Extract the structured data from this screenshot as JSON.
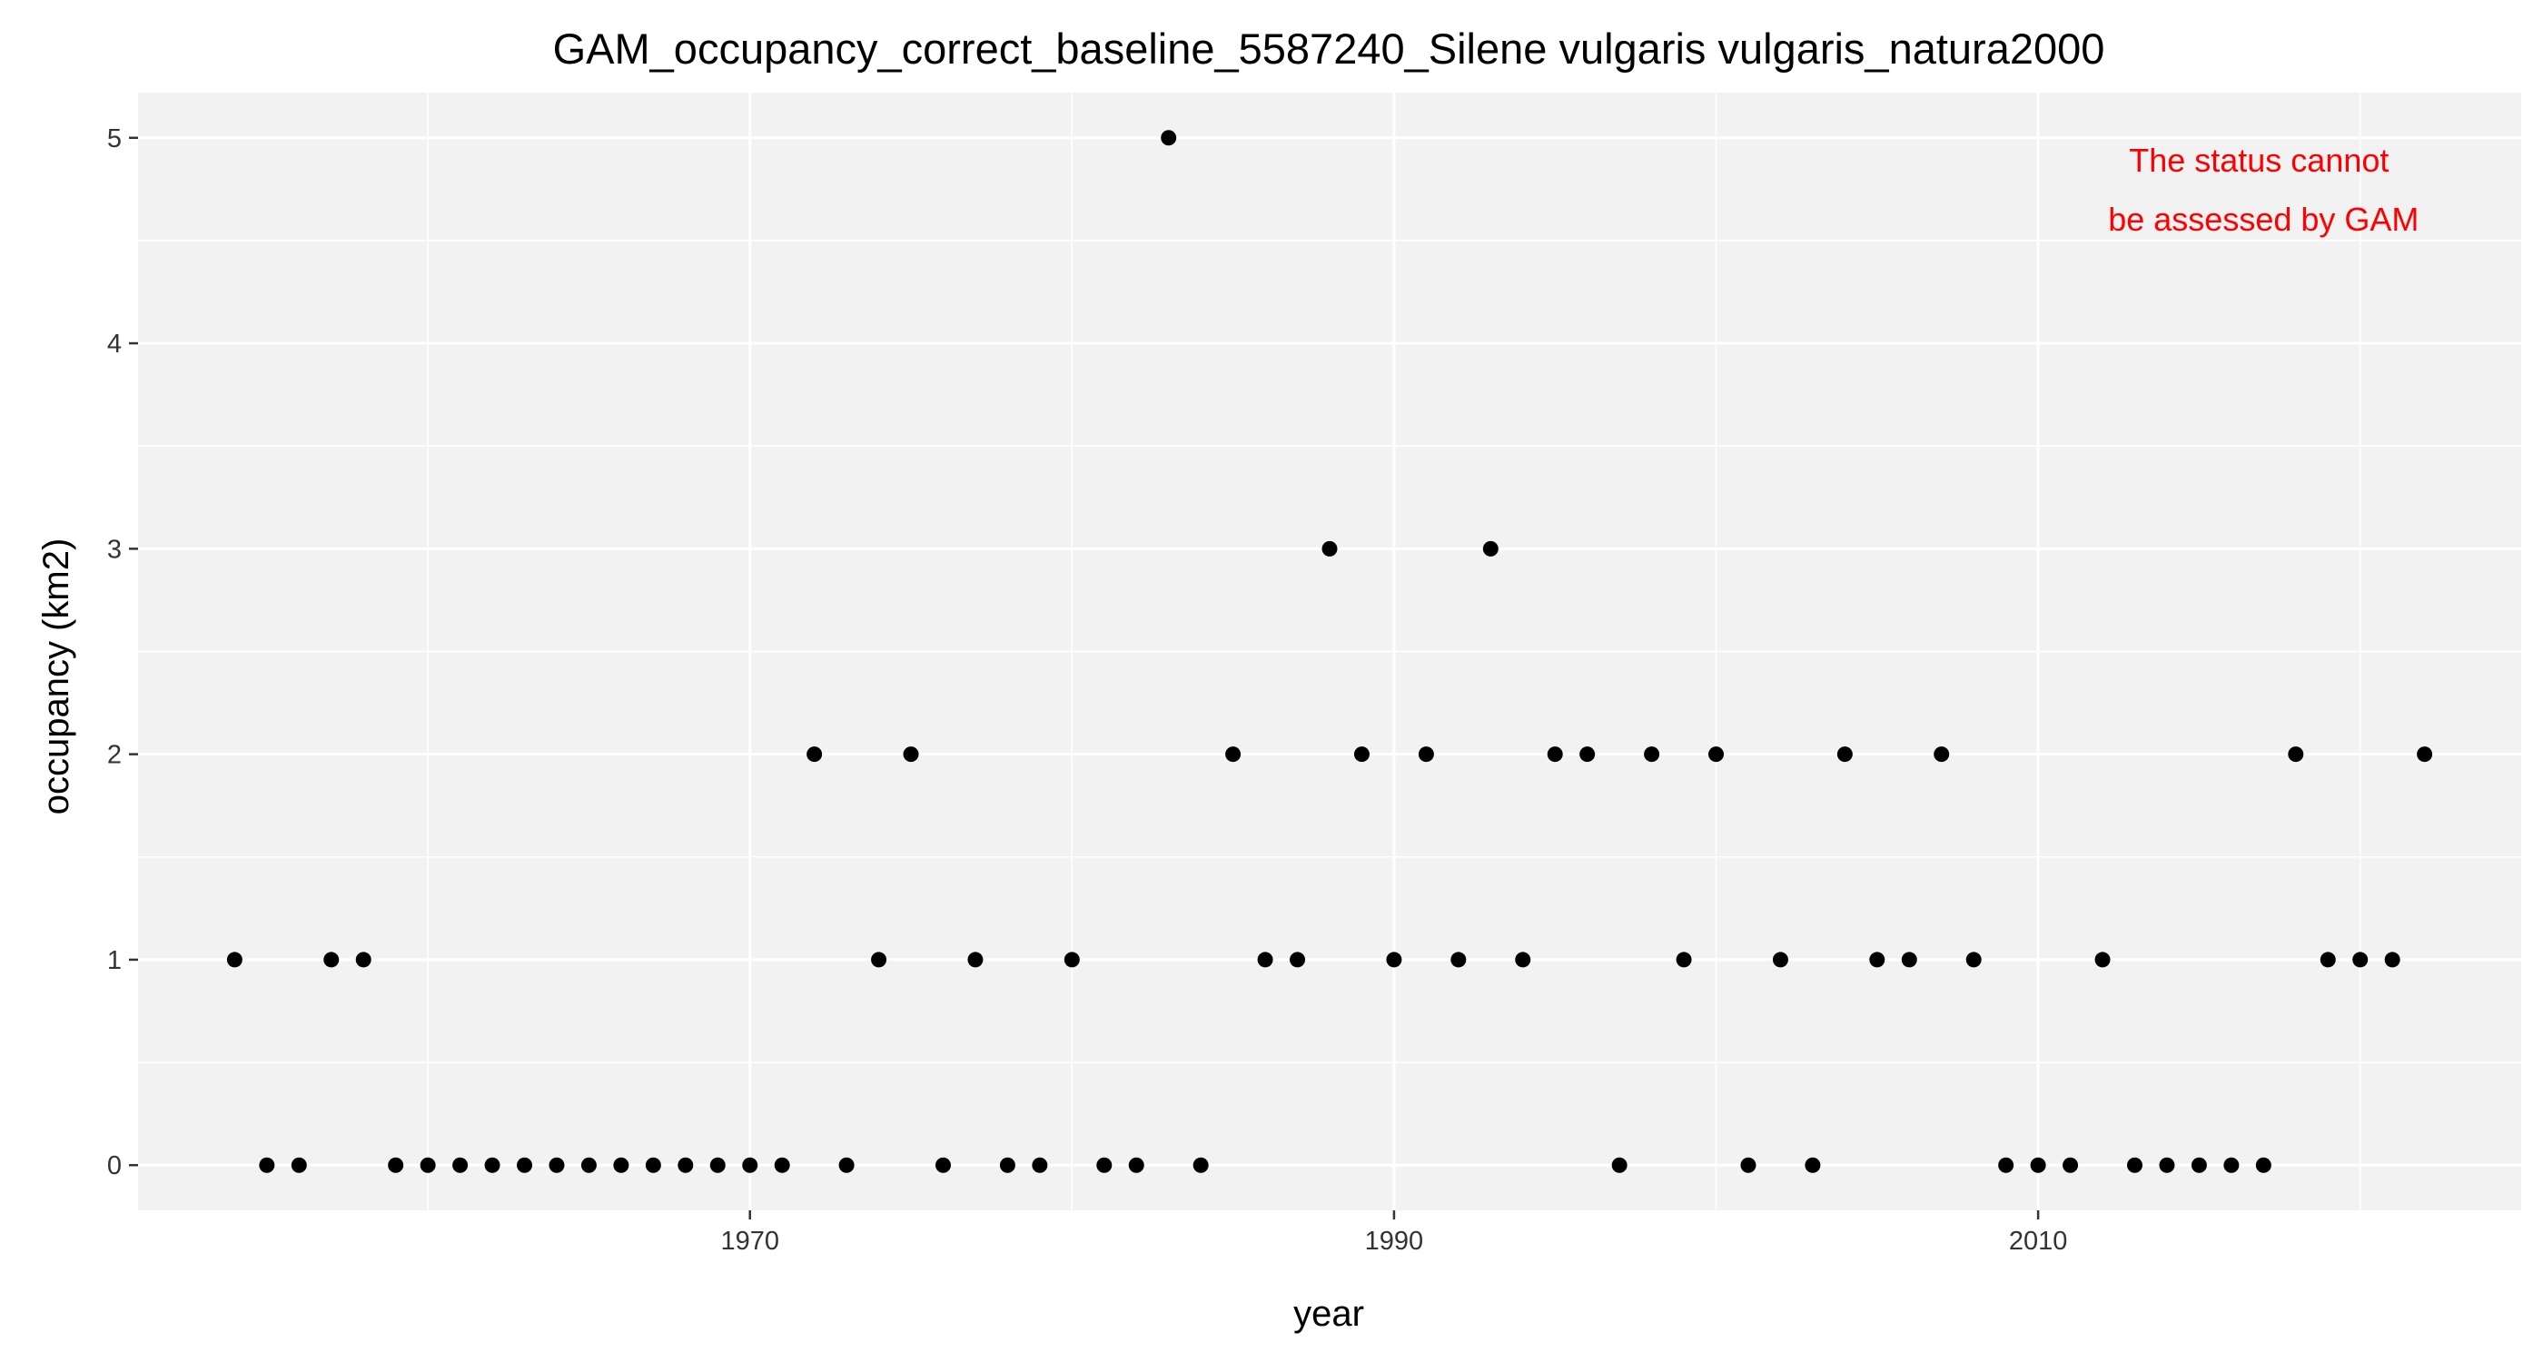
{
  "chart_data": {
    "type": "scatter",
    "title": "GAM_occupancy_correct_baseline_5587240_Silene vulgaris vulgaris_natura2000",
    "xlabel": "year",
    "ylabel": "occupancy (km2)",
    "xlim": [
      1951,
      2025
    ],
    "ylim": [
      -0.22,
      5.22
    ],
    "x_ticks": [
      1970,
      1990,
      2010
    ],
    "y_ticks": [
      0,
      1,
      2,
      3,
      4,
      5
    ],
    "grid": true,
    "panel_color": "#f2f2f2",
    "point_color": "#000000",
    "annotation": {
      "lines": [
        "The status cannot",
        "be assessed by GAM"
      ],
      "color": "#ff0000",
      "x": 2017,
      "y": 4.8
    },
    "series": [
      {
        "x": [
          1954,
          1955,
          1956,
          1957,
          1958,
          1959,
          1960,
          1961,
          1962,
          1963,
          1964,
          1965,
          1966,
          1967,
          1968,
          1969,
          1970,
          1971,
          1972,
          1973,
          1974,
          1975,
          1976,
          1977,
          1978,
          1979,
          1980,
          1981,
          1982,
          1983,
          1984,
          1985,
          1986,
          1987,
          1988,
          1989,
          1990,
          1991,
          1992,
          1993,
          1994,
          1995,
          1996,
          1997,
          1998,
          1999,
          2000,
          2001,
          2002,
          2003,
          2004,
          2005,
          2006,
          2007,
          2008,
          2009,
          2010,
          2011,
          2012,
          2013,
          2014,
          2015,
          2016,
          2017,
          2018,
          2019,
          2020,
          2021,
          2022
        ],
        "y": [
          1,
          0,
          0,
          1,
          1,
          0,
          0,
          0,
          0,
          0,
          0,
          0,
          0,
          0,
          0,
          0,
          0,
          0,
          2,
          0,
          1,
          2,
          0,
          1,
          0,
          0,
          1,
          0,
          0,
          5,
          0,
          2,
          1,
          1,
          3,
          2,
          1,
          2,
          1,
          3,
          1,
          2,
          2,
          0,
          2,
          1,
          2,
          0,
          1,
          0,
          2,
          1,
          1,
          2,
          1,
          0,
          0,
          0,
          1,
          0,
          0,
          0,
          0,
          0,
          2,
          1,
          1,
          1,
          2
        ]
      }
    ]
  }
}
